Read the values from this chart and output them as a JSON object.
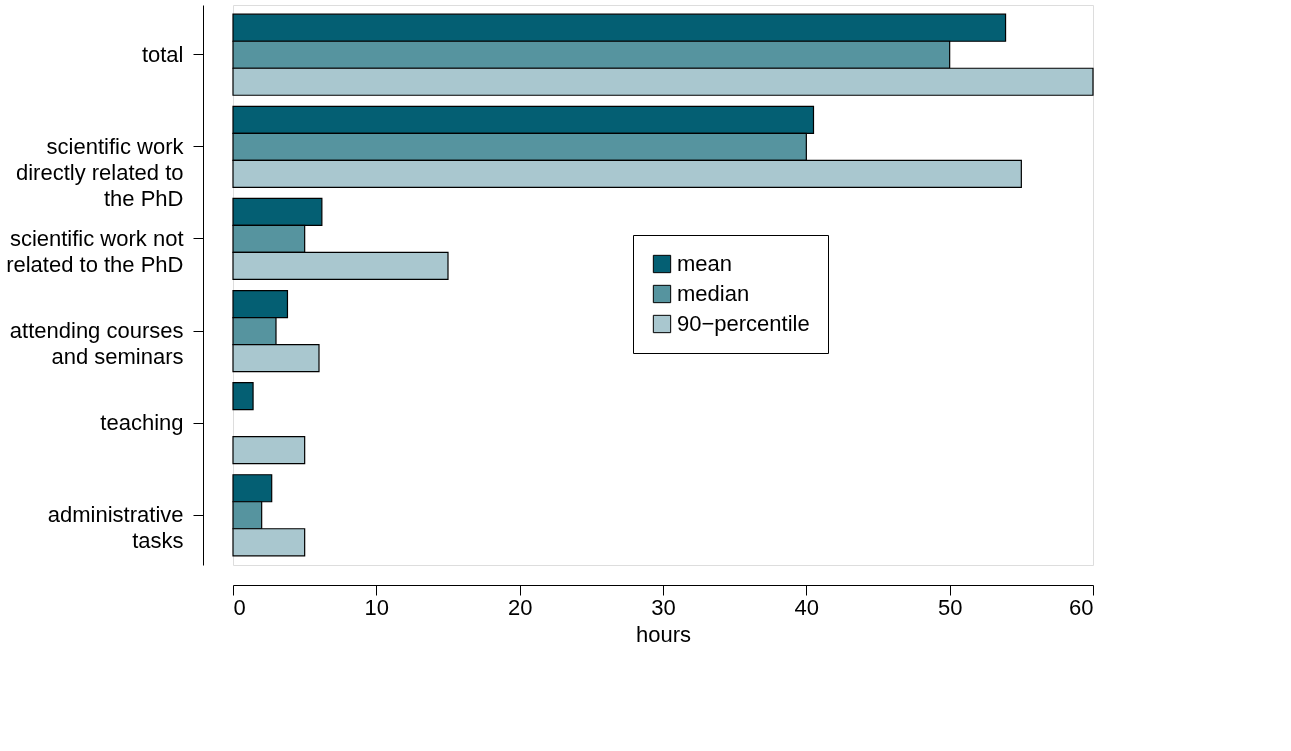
{
  "chart_data": {
    "type": "bar",
    "orientation": "horizontal",
    "xlabel": "hours",
    "categories": [
      "total",
      "scientific work directly related to the PhD",
      "scientific work not related to the PhD",
      "attending courses and seminars",
      "teaching",
      "administrative tasks"
    ],
    "series": [
      {
        "name": "mean",
        "color": "#045f73",
        "values": [
          53.9,
          40.5,
          6.2,
          3.8,
          1.4,
          2.7
        ]
      },
      {
        "name": "median",
        "color": "#56949f",
        "values": [
          50,
          40,
          5,
          3,
          null,
          2
        ]
      },
      {
        "name": "90−percentile",
        "color": "#a9c7cf",
        "values": [
          60,
          55,
          15,
          6,
          5,
          5
        ]
      }
    ],
    "xlim": [
      0,
      60
    ],
    "xticks": [
      0,
      10,
      20,
      30,
      40,
      50,
      60
    ],
    "grid": false,
    "legend": "right"
  }
}
